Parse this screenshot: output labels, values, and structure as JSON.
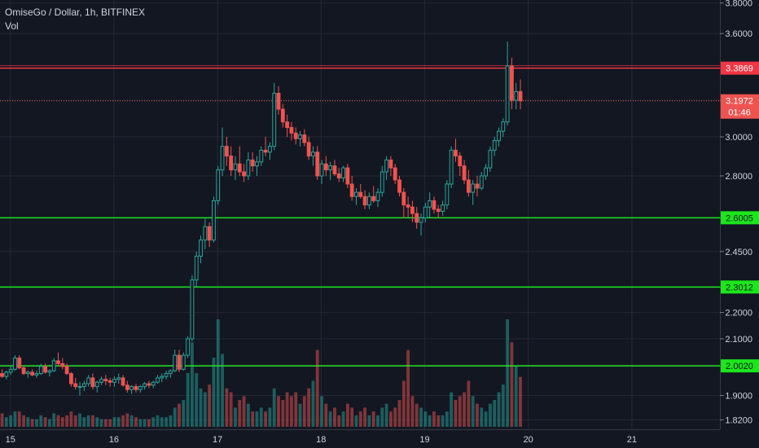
{
  "header": {
    "symbol_line": "OmiseGo / Dollar, 1h, BITFINEX",
    "volume_label": "Vol"
  },
  "colors": {
    "background": "#131722",
    "grid": "#242936",
    "up": "#26a69a",
    "down": "#ef5350",
    "support": "#1ce61c",
    "resistance": "#f23645",
    "current_price": "#ef5350",
    "axis_text": "#d1d4dc"
  },
  "chart_data": {
    "type": "candlestick",
    "symbol": "OmiseGo / Dollar",
    "interval": "1h",
    "exchange": "BITFINEX",
    "x_axis": {
      "ticks": [
        {
          "label": "15",
          "day": 15
        },
        {
          "label": "16",
          "day": 16
        },
        {
          "label": "17",
          "day": 17
        },
        {
          "label": "18",
          "day": 18
        },
        {
          "label": "19",
          "day": 19
        },
        {
          "label": "20",
          "day": 20
        },
        {
          "label": "21",
          "day": 21
        }
      ],
      "range": [
        14.9,
        21.85
      ]
    },
    "y_axis": {
      "scale": "log",
      "ticks": [
        "1.8200",
        "1.9000",
        "2.0000",
        "2.1000",
        "2.2000",
        "2.3000",
        "2.4500",
        "2.6000",
        "2.8000",
        "3.0000",
        "3.2000",
        "3.6000",
        "3.8000"
      ],
      "range": [
        1.79,
        3.82
      ]
    },
    "horizontal_lines": [
      {
        "value": 3.3869,
        "label": "3.3869",
        "role": "resistance"
      },
      {
        "value": 2.6005,
        "label": "2.6005",
        "role": "support"
      },
      {
        "value": 2.3012,
        "label": "2.3012",
        "role": "support"
      },
      {
        "value": 2.002,
        "label": "2.0020",
        "role": "support"
      }
    ],
    "current_price": {
      "value": 3.1972,
      "label": "3.1972",
      "countdown": "01:46"
    },
    "series": [
      {
        "type": "candles",
        "fields": [
          "open",
          "high",
          "low",
          "close",
          "volume"
        ],
        "start_day": 14.92,
        "step_days": 0.0417,
        "values": [
          [
            1.975,
            1.99,
            1.96,
            1.965,
            3.5
          ],
          [
            1.965,
            1.985,
            1.955,
            1.98,
            2.5
          ],
          [
            1.98,
            2.0,
            1.97,
            1.99,
            3
          ],
          [
            1.99,
            2.04,
            1.985,
            2.03,
            4
          ],
          [
            2.03,
            2.04,
            1.99,
            1.995,
            4
          ],
          [
            1.995,
            2.0,
            1.97,
            1.975,
            3
          ],
          [
            1.975,
            1.985,
            1.96,
            1.98,
            2.5
          ],
          [
            1.98,
            1.99,
            1.965,
            1.97,
            2
          ],
          [
            1.97,
            1.985,
            1.96,
            1.975,
            2
          ],
          [
            1.975,
            2.01,
            1.97,
            2.0,
            3
          ],
          [
            2.0,
            2.01,
            1.975,
            1.98,
            2.5
          ],
          [
            1.98,
            1.99,
            1.965,
            1.985,
            2
          ],
          [
            1.985,
            2.03,
            1.98,
            2.02,
            3.5
          ],
          [
            2.02,
            2.05,
            2.0,
            2.01,
            3
          ],
          [
            2.01,
            2.03,
            1.99,
            2.0,
            2.5
          ],
          [
            2.0,
            2.01,
            1.97,
            1.975,
            3
          ],
          [
            1.975,
            1.98,
            1.93,
            1.94,
            4
          ],
          [
            1.94,
            1.96,
            1.92,
            1.93,
            3
          ],
          [
            1.93,
            1.945,
            1.9,
            1.93,
            3.5
          ],
          [
            1.93,
            1.95,
            1.915,
            1.94,
            2.5
          ],
          [
            1.94,
            1.97,
            1.93,
            1.96,
            3
          ],
          [
            1.96,
            1.975,
            1.92,
            1.93,
            3
          ],
          [
            1.93,
            1.95,
            1.91,
            1.945,
            2.5
          ],
          [
            1.945,
            1.965,
            1.935,
            1.955,
            2
          ],
          [
            1.955,
            1.97,
            1.935,
            1.95,
            2
          ],
          [
            1.95,
            1.96,
            1.93,
            1.945,
            2
          ],
          [
            1.945,
            1.965,
            1.93,
            1.955,
            2.5
          ],
          [
            1.955,
            1.975,
            1.94,
            1.96,
            2.5
          ],
          [
            1.96,
            1.97,
            1.93,
            1.935,
            3
          ],
          [
            1.935,
            1.95,
            1.91,
            1.92,
            3.5
          ],
          [
            1.92,
            1.935,
            1.905,
            1.93,
            3
          ],
          [
            1.93,
            1.94,
            1.91,
            1.92,
            2.5
          ],
          [
            1.92,
            1.935,
            1.91,
            1.93,
            2
          ],
          [
            1.93,
            1.945,
            1.92,
            1.94,
            2
          ],
          [
            1.94,
            1.95,
            1.925,
            1.935,
            2
          ],
          [
            1.935,
            1.95,
            1.925,
            1.945,
            2.5
          ],
          [
            1.945,
            1.97,
            1.94,
            1.96,
            3
          ],
          [
            1.96,
            1.975,
            1.945,
            1.965,
            2.5
          ],
          [
            1.965,
            1.985,
            1.955,
            1.975,
            2.5
          ],
          [
            1.975,
            1.99,
            1.96,
            1.985,
            3
          ],
          [
            1.985,
            2.06,
            1.98,
            2.04,
            5
          ],
          [
            2.04,
            2.06,
            1.98,
            1.99,
            6
          ],
          [
            1.99,
            2.05,
            1.985,
            2.04,
            7
          ],
          [
            2.04,
            2.11,
            2.03,
            2.1,
            14
          ],
          [
            2.1,
            2.35,
            2.09,
            2.33,
            22
          ],
          [
            2.33,
            2.45,
            2.3,
            2.43,
            14
          ],
          [
            2.43,
            2.52,
            2.4,
            2.5,
            10
          ],
          [
            2.5,
            2.6,
            2.46,
            2.56,
            9
          ],
          [
            2.56,
            2.58,
            2.47,
            2.5,
            11
          ],
          [
            2.5,
            2.7,
            2.49,
            2.68,
            18
          ],
          [
            2.68,
            2.85,
            2.66,
            2.83,
            28
          ],
          [
            2.83,
            3.05,
            2.8,
            2.95,
            19
          ],
          [
            2.95,
            3.0,
            2.85,
            2.9,
            10
          ],
          [
            2.9,
            2.95,
            2.8,
            2.83,
            9
          ],
          [
            2.83,
            2.9,
            2.78,
            2.86,
            5
          ],
          [
            2.86,
            2.95,
            2.8,
            2.82,
            7
          ],
          [
            2.82,
            2.86,
            2.77,
            2.8,
            8
          ],
          [
            2.8,
            2.92,
            2.78,
            2.88,
            6
          ],
          [
            2.88,
            2.92,
            2.82,
            2.85,
            4
          ],
          [
            2.85,
            2.9,
            2.8,
            2.87,
            4
          ],
          [
            2.87,
            2.95,
            2.85,
            2.93,
            5
          ],
          [
            2.93,
            3.0,
            2.9,
            2.92,
            4
          ],
          [
            2.92,
            2.97,
            2.88,
            2.95,
            5
          ],
          [
            2.95,
            3.3,
            2.93,
            3.24,
            10
          ],
          [
            3.24,
            3.28,
            3.12,
            3.15,
            8
          ],
          [
            3.15,
            3.18,
            3.05,
            3.08,
            7
          ],
          [
            3.08,
            3.12,
            3.0,
            3.05,
            9
          ],
          [
            3.05,
            3.08,
            2.98,
            3.02,
            8
          ],
          [
            3.02,
            3.05,
            2.96,
            2.99,
            9
          ],
          [
            2.99,
            3.03,
            2.95,
            3.01,
            6
          ],
          [
            3.01,
            3.04,
            2.95,
            2.97,
            8
          ],
          [
            2.97,
            3.0,
            2.88,
            2.9,
            10
          ],
          [
            2.9,
            2.95,
            2.85,
            2.92,
            12
          ],
          [
            2.92,
            2.95,
            2.78,
            2.8,
            20
          ],
          [
            2.8,
            2.88,
            2.76,
            2.86,
            8
          ],
          [
            2.86,
            2.9,
            2.8,
            2.83,
            6
          ],
          [
            2.83,
            2.87,
            2.78,
            2.85,
            4
          ],
          [
            2.85,
            2.88,
            2.8,
            2.81,
            5
          ],
          [
            2.81,
            2.84,
            2.77,
            2.79,
            3
          ],
          [
            2.79,
            2.85,
            2.77,
            2.84,
            4
          ],
          [
            2.84,
            2.86,
            2.74,
            2.76,
            6
          ],
          [
            2.76,
            2.8,
            2.68,
            2.7,
            5
          ],
          [
            2.7,
            2.74,
            2.66,
            2.72,
            3
          ],
          [
            2.72,
            2.76,
            2.69,
            2.7,
            4
          ],
          [
            2.7,
            2.73,
            2.64,
            2.66,
            5
          ],
          [
            2.66,
            2.72,
            2.64,
            2.7,
            3
          ],
          [
            2.7,
            2.75,
            2.67,
            2.68,
            4
          ],
          [
            2.68,
            2.74,
            2.65,
            2.72,
            3
          ],
          [
            2.72,
            2.85,
            2.7,
            2.82,
            5
          ],
          [
            2.82,
            2.9,
            2.78,
            2.88,
            6
          ],
          [
            2.88,
            2.9,
            2.8,
            2.84,
            4
          ],
          [
            2.84,
            2.86,
            2.76,
            2.78,
            5
          ],
          [
            2.78,
            2.8,
            2.7,
            2.72,
            7
          ],
          [
            2.72,
            2.74,
            2.6,
            2.66,
            12
          ],
          [
            2.66,
            2.7,
            2.6,
            2.65,
            20
          ],
          [
            2.65,
            2.68,
            2.58,
            2.62,
            8
          ],
          [
            2.62,
            2.65,
            2.55,
            2.58,
            6
          ],
          [
            2.58,
            2.62,
            2.52,
            2.6,
            5
          ],
          [
            2.6,
            2.67,
            2.58,
            2.65,
            4
          ],
          [
            2.65,
            2.72,
            2.6,
            2.68,
            3
          ],
          [
            2.68,
            2.7,
            2.62,
            2.64,
            4
          ],
          [
            2.64,
            2.66,
            2.6,
            2.63,
            3
          ],
          [
            2.63,
            2.68,
            2.61,
            2.66,
            3
          ],
          [
            2.66,
            2.78,
            2.64,
            2.76,
            4
          ],
          [
            2.76,
            2.95,
            2.74,
            2.93,
            9
          ],
          [
            2.93,
            2.99,
            2.87,
            2.9,
            7
          ],
          [
            2.9,
            2.92,
            2.8,
            2.85,
            8
          ],
          [
            2.85,
            2.88,
            2.76,
            2.78,
            9
          ],
          [
            2.78,
            2.83,
            2.7,
            2.72,
            12
          ],
          [
            2.72,
            2.78,
            2.66,
            2.76,
            8
          ],
          [
            2.76,
            2.8,
            2.7,
            2.74,
            6
          ],
          [
            2.74,
            2.82,
            2.73,
            2.8,
            5
          ],
          [
            2.8,
            2.86,
            2.78,
            2.84,
            4
          ],
          [
            2.84,
            2.95,
            2.82,
            2.93,
            6
          ],
          [
            2.93,
            3.0,
            2.9,
            2.98,
            7
          ],
          [
            2.98,
            3.05,
            2.95,
            3.03,
            9
          ],
          [
            3.03,
            3.1,
            3.0,
            3.08,
            11
          ],
          [
            3.08,
            3.55,
            3.06,
            3.4,
            28
          ],
          [
            3.4,
            3.45,
            3.15,
            3.2,
            22
          ],
          [
            3.2,
            3.3,
            3.15,
            3.25,
            16
          ],
          [
            3.25,
            3.32,
            3.15,
            3.197,
            13
          ]
        ]
      }
    ]
  }
}
